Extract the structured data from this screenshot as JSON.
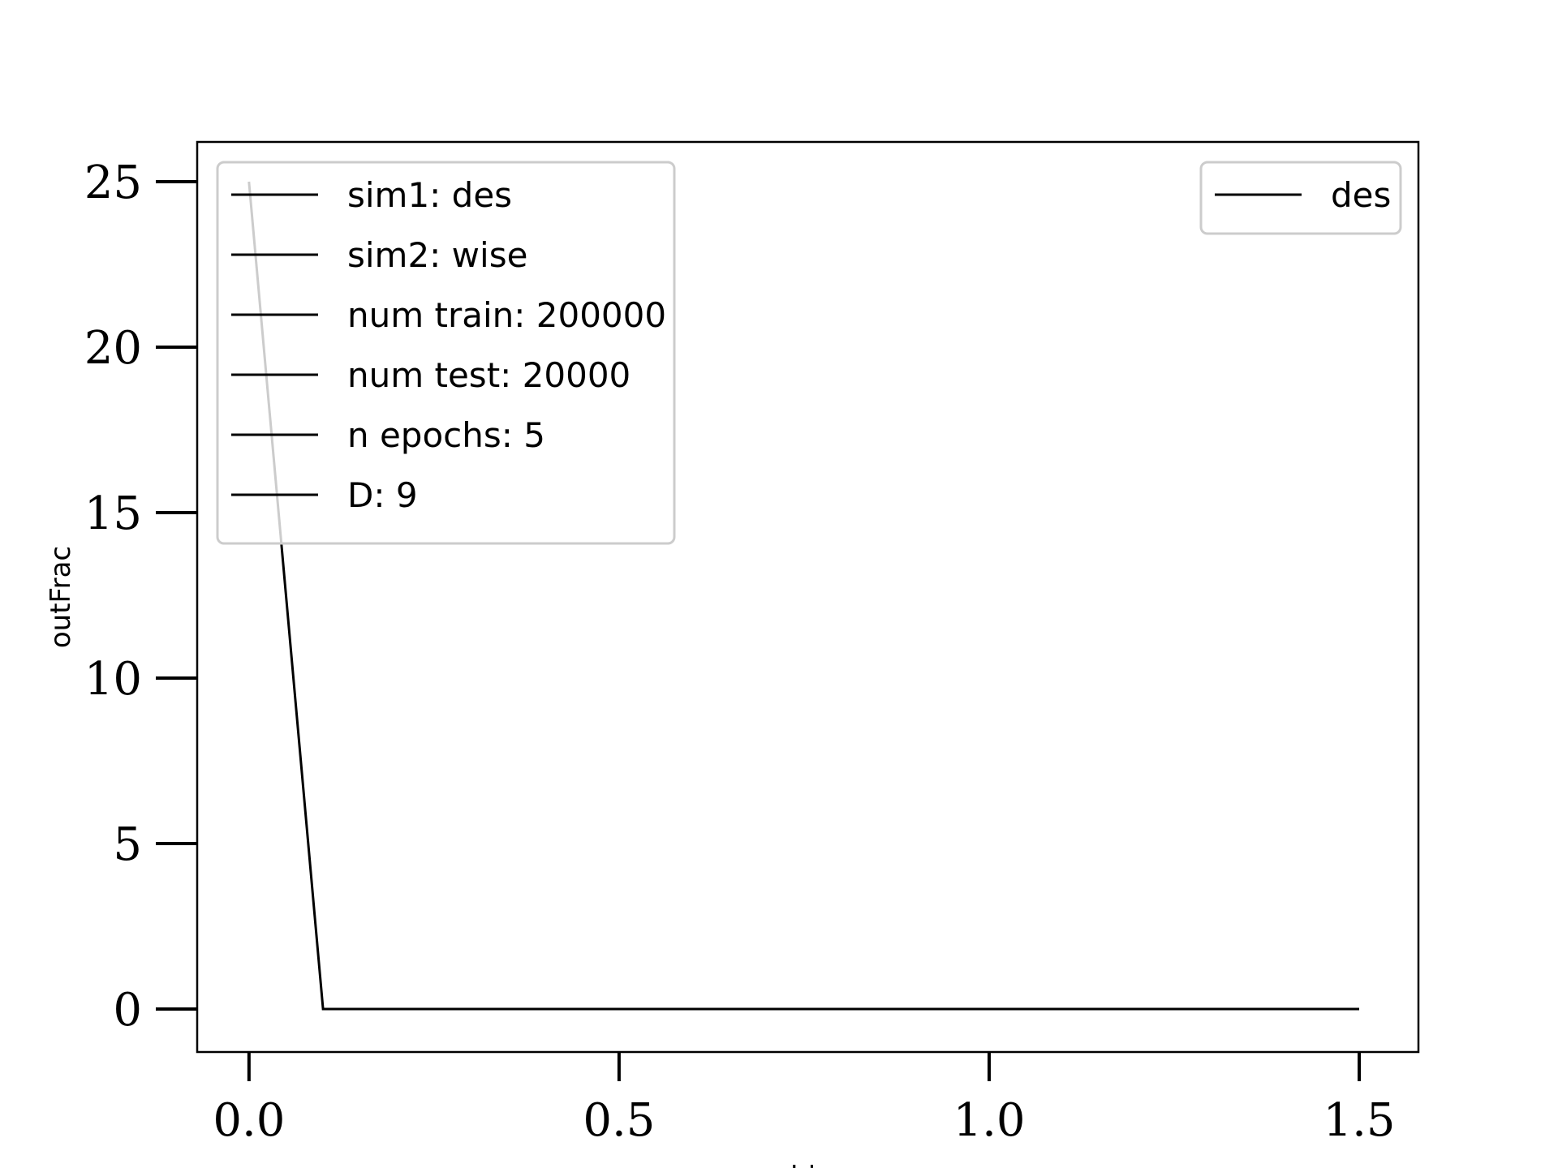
{
  "chart_data": {
    "type": "line",
    "title": "",
    "xlabel": "z bins",
    "ylabel": "outFrac",
    "xlim": [
      -0.07,
      1.58
    ],
    "ylim": [
      -1.3,
      26.2
    ],
    "x_ticks": [
      0.0,
      0.5,
      1.0,
      1.5
    ],
    "x_tick_labels": [
      "0.0",
      "0.5",
      "1.0",
      "1.5"
    ],
    "y_ticks": [
      0,
      5,
      10,
      15,
      20,
      25
    ],
    "y_tick_labels": [
      "0",
      "5",
      "10",
      "15",
      "20",
      "25"
    ],
    "grid": false,
    "series": [
      {
        "name": "des",
        "color": "#000000",
        "x": [
          0.0,
          0.1,
          0.2,
          0.3,
          0.4,
          0.5,
          0.6,
          0.7,
          0.8,
          0.9,
          1.0,
          1.1,
          1.2,
          1.3,
          1.4,
          1.5
        ],
        "y": [
          25,
          0,
          0,
          0,
          0,
          0,
          0,
          0,
          0,
          0,
          0,
          0,
          0,
          0,
          0,
          0
        ]
      }
    ],
    "info_legend": {
      "placement": "upper-left",
      "entries": [
        "sim1: des",
        "sim2: wise",
        "num train: 200000",
        "num test: 20000",
        "n epochs: 5",
        "D: 9"
      ]
    },
    "series_legend": {
      "placement": "upper-right",
      "entries": [
        "des"
      ]
    }
  }
}
